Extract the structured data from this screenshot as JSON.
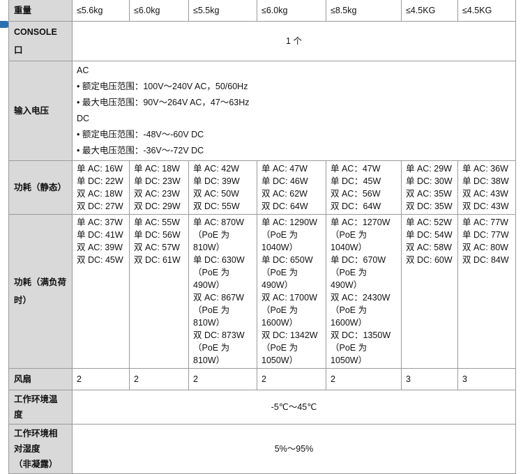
{
  "rows": {
    "weight": {
      "label": "重量",
      "values": [
        "≤5.6kg",
        "≤6.0kg",
        "≤5.5kg",
        "≤6.0kg",
        "≤8.5kg",
        "≤4.5KG",
        "≤4.5KG"
      ]
    },
    "console": {
      "label": "CONSOLE 口",
      "value": "1 个"
    },
    "input_voltage": {
      "label": "输入电压",
      "lines": [
        "AC",
        "• 额定电压范围：100V～240V AC，50/60Hz",
        "• 最大电压范围：90V～264V AC，47～63Hz",
        "DC",
        "• 额定电压范围：-48V～-60V DC",
        "• 最大电压范围：-36V～-72V DC"
      ]
    },
    "power_static": {
      "label": "功耗（静态）",
      "cells": [
        [
          "单 AC: 16W",
          "单 DC: 22W",
          "双 AC: 18W",
          "双 DC: 27W"
        ],
        [
          "单 AC: 18W",
          "单 DC: 23W",
          "双 AC: 23W",
          "双 DC: 29W"
        ],
        [
          "单 AC: 42W",
          "单 DC: 39W",
          "双 AC: 50W",
          "双 DC: 55W"
        ],
        [
          "单 AC: 47W",
          "单 DC: 46W",
          "双 AC: 62W",
          "双 DC: 64W"
        ],
        [
          "单 AC：47W",
          "单 DC：45W",
          "双 AC：56W",
          "双 DC：64W"
        ],
        [
          "单 AC: 29W",
          "单 DC: 30W",
          "双 AC: 35W",
          "双 DC: 35W"
        ],
        [
          "单 AC: 36W",
          "单 DC: 38W",
          "双 AC: 43W",
          "双 DC: 43W"
        ]
      ]
    },
    "power_full": {
      "label_line1": "功耗（满负荷",
      "label_line2": "时）",
      "cells": [
        [
          "单 AC: 37W",
          "单 DC: 41W",
          "双 AC: 39W",
          "双 DC: 45W"
        ],
        [
          "单 AC: 55W",
          "单 DC: 56W",
          "双 AC: 57W",
          "双 DC: 61W"
        ],
        [
          "单 AC: 870W",
          "（PoE 为",
          "810W）",
          "单 DC: 630W",
          "（PoE 为",
          "490W）",
          "双 AC: 867W",
          "（PoE 为",
          "810W）",
          "双 DC: 873W",
          "（PoE 为",
          "810W）"
        ],
        [
          "单 AC: 1290W",
          "（PoE 为",
          "1040W）",
          "单 DC: 650W",
          "（PoE 为",
          "490W）",
          "双 AC: 1700W",
          "（PoE 为",
          "1600W）",
          "双 DC: 1342W",
          "（PoE 为",
          "1050W）"
        ],
        [
          "单 AC：1270W",
          "（PoE 为",
          "1040W）",
          "单 DC：670W",
          "（PoE 为",
          "490W）",
          "双 AC：2430W",
          "（PoE 为",
          "1600W）",
          "双 DC：1350W",
          "（PoE 为",
          "1050W）"
        ],
        [
          "单 AC: 52W",
          "单 DC: 54W",
          "双 AC: 58W",
          "双 DC: 60W"
        ],
        [
          "单 AC: 77W",
          "单 DC: 77W",
          "双 AC: 80W",
          "双 DC: 84W"
        ]
      ]
    },
    "fan": {
      "label": "风扇",
      "values": [
        "2",
        "2",
        "2",
        "2",
        "2",
        "3",
        "3"
      ]
    },
    "temperature": {
      "label_line1": "工作环境温",
      "label_line2": "度",
      "value": "-5℃～45℃"
    },
    "humidity": {
      "label_line1": "工作环境相",
      "label_line2": "对湿度",
      "label_line3": "（非凝露）",
      "value": "5%～95%"
    }
  }
}
